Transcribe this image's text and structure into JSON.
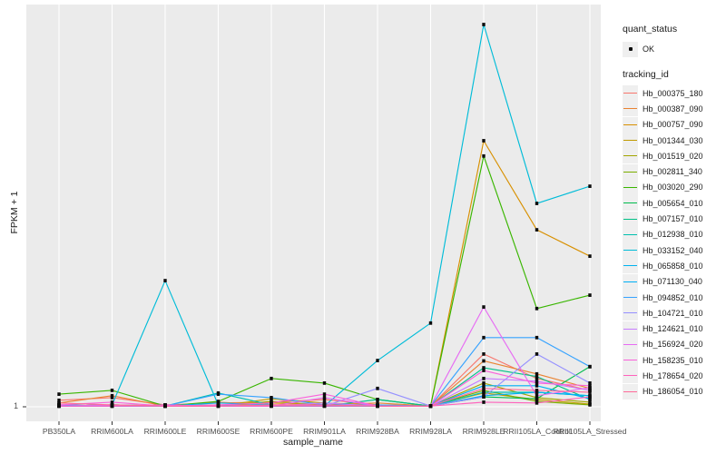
{
  "chart_data": {
    "type": "line",
    "title": "",
    "xlabel": "sample_name",
    "ylabel": "FPKM + 1",
    "grid": "major-vertical-white-on-gray",
    "legend_position": "right",
    "panel_bg": "#EBEBEB",
    "grid_color": "#FFFFFF",
    "tick_text_color": "#4D4D4D",
    "marker_color": "#0d0d0d",
    "y_axis_ticks": [
      {
        "label": "1",
        "height_pct": 0
      }
    ],
    "value_units": "percent_of_panel_height_above_FPKM1_baseline (only the '1' tick is labeled on the axis)",
    "categories": [
      "PB350LA",
      "RRIM600LA",
      "RRIM600LE",
      "RRIM600SE",
      "RRIM600PE",
      "RRIM901LA",
      "RRIM928BA",
      "RRIM928LA",
      "RRIM928LE",
      "RRII105LA_Control",
      "RRII105LA_Stressed"
    ],
    "quant_status": {
      "title": "quant_status",
      "entries": [
        "OK"
      ],
      "marker": "black-point"
    },
    "series_legend_title": "tracking_id",
    "series": [
      {
        "name": "Hb_000375_180",
        "color": "#F8766D",
        "values": [
          1.7,
          2.4,
          0.5,
          1.0,
          1.2,
          1.9,
          0.5,
          0.2,
          13.8,
          7.4,
          4.3
        ]
      },
      {
        "name": "Hb_000387_090",
        "color": "#EA8331",
        "values": [
          1.0,
          2.9,
          0.2,
          1.2,
          0.5,
          0.5,
          1.0,
          0.2,
          12.0,
          8.6,
          4.8
        ]
      },
      {
        "name": "Hb_000757_090",
        "color": "#D89000",
        "values": [
          0.5,
          0.2,
          0.5,
          0.2,
          1.0,
          0.5,
          0.2,
          0.2,
          69.6,
          46.3,
          39.4
        ]
      },
      {
        "name": "Hb_001344_030",
        "color": "#C09B00",
        "values": [
          0.2,
          0.5,
          0.2,
          0.2,
          2.1,
          1.0,
          0.5,
          0.2,
          3.6,
          1.9,
          0.7
        ]
      },
      {
        "name": "Hb_001519_020",
        "color": "#A3A500",
        "values": [
          0.2,
          0.2,
          0.5,
          0.2,
          1.4,
          0.5,
          0.2,
          0.2,
          6.2,
          2.4,
          1.2
        ]
      },
      {
        "name": "Hb_002811_340",
        "color": "#7CAE00",
        "values": [
          0.2,
          0.5,
          0.2,
          0.2,
          0.5,
          0.2,
          0.2,
          0.2,
          4.3,
          1.4,
          0.5
        ]
      },
      {
        "name": "Hb_003020_290",
        "color": "#39B600",
        "values": [
          3.3,
          4.3,
          0.2,
          1.4,
          7.4,
          6.2,
          1.9,
          0.2,
          65.6,
          25.7,
          29.2
        ]
      },
      {
        "name": "Hb_005654_010",
        "color": "#00BB4E",
        "values": [
          0.2,
          0.2,
          0.2,
          0.5,
          0.2,
          0.5,
          0.2,
          0.2,
          2.6,
          2.1,
          10.5
        ]
      },
      {
        "name": "Hb_007157_010",
        "color": "#00C087",
        "values": [
          0.5,
          0.2,
          0.2,
          0.2,
          0.2,
          0.2,
          1.9,
          0.2,
          10.2,
          7.9,
          1.9
        ]
      },
      {
        "name": "Hb_012938_010",
        "color": "#00C0AF",
        "values": [
          0.2,
          0.5,
          0.2,
          3.6,
          0.5,
          0.2,
          0.2,
          0.2,
          3.8,
          3.8,
          2.9
        ]
      },
      {
        "name": "Hb_033152_040",
        "color": "#00BCD8",
        "values": [
          0.2,
          0.5,
          33.0,
          0.5,
          0.2,
          0.2,
          12.1,
          21.9,
          100.0,
          53.2,
          57.7
        ]
      },
      {
        "name": "Hb_065858_010",
        "color": "#00B2F0",
        "values": [
          0.2,
          0.2,
          0.2,
          0.2,
          0.2,
          0.2,
          0.2,
          0.2,
          2.9,
          3.8,
          2.9
        ]
      },
      {
        "name": "Hb_071130_040",
        "color": "#00B0F6",
        "values": [
          0.2,
          0.2,
          0.2,
          1.0,
          0.5,
          0.2,
          0.2,
          0.2,
          5.5,
          5.5,
          2.1
        ]
      },
      {
        "name": "Hb_094852_010",
        "color": "#35A2FF",
        "values": [
          0.5,
          0.2,
          0.2,
          3.3,
          2.4,
          0.5,
          0.5,
          0.2,
          18.1,
          18.1,
          10.5
        ]
      },
      {
        "name": "Hb_104721_010",
        "color": "#9590FF",
        "values": [
          0.2,
          0.2,
          0.2,
          0.2,
          0.5,
          0.2,
          4.8,
          0.2,
          2.6,
          13.8,
          6.2
        ]
      },
      {
        "name": "Hb_124621_010",
        "color": "#C77CFF",
        "values": [
          0.2,
          0.5,
          0.2,
          0.2,
          0.2,
          1.0,
          0.2,
          0.2,
          7.4,
          6.7,
          4.3
        ]
      },
      {
        "name": "Hb_156924_020",
        "color": "#E76BF3",
        "values": [
          0.2,
          0.2,
          0.5,
          0.2,
          0.2,
          2.4,
          0.2,
          0.2,
          26.1,
          2.9,
          5.0
        ]
      },
      {
        "name": "Hb_158235_010",
        "color": "#FA62DB",
        "values": [
          0.5,
          1.2,
          0.2,
          0.5,
          1.0,
          3.3,
          0.2,
          0.2,
          9.5,
          6.2,
          5.5
        ]
      },
      {
        "name": "Hb_178654_020",
        "color": "#FF62BC",
        "values": [
          0.2,
          0.2,
          0.2,
          0.2,
          0.2,
          0.2,
          0.2,
          0.2,
          1.2,
          1.0,
          2.6
        ]
      },
      {
        "name": "Hb_186054_010",
        "color": "#FF6A9A",
        "values": [
          1.0,
          0.5,
          0.2,
          0.2,
          0.5,
          0.5,
          0.2,
          0.2,
          4.8,
          4.3,
          3.8
        ]
      }
    ]
  }
}
